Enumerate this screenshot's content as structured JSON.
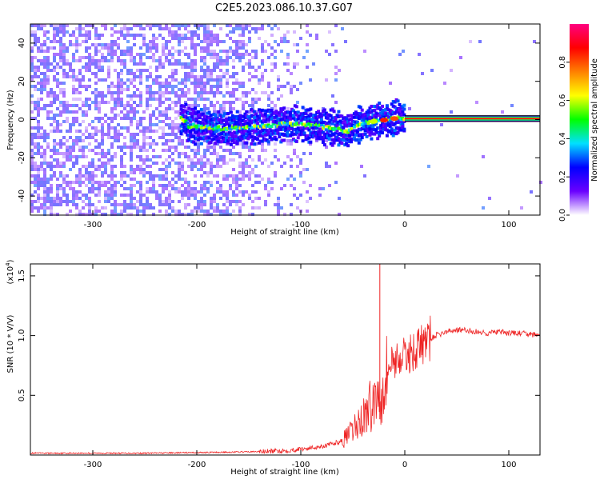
{
  "title": "C2E5.2023.086.10.37.G07",
  "chart_data": [
    {
      "type": "heatmap",
      "xlabel": "Height of straight line (km)",
      "ylabel": "Frequency (Hz)",
      "xlim": [
        -360,
        130
      ],
      "ylim": [
        -50,
        50
      ],
      "xticks": [
        -300,
        -200,
        -100,
        0,
        100
      ],
      "yticks": [
        -40,
        -20,
        0,
        20,
        40
      ],
      "colorbar": {
        "label": "Normalized spectral amplitude",
        "range": [
          0,
          1
        ],
        "ticks": [
          "0.0",
          "0.2",
          "0.4",
          "0.6",
          "0.8"
        ],
        "colors": [
          "#ffffff",
          "#6a00ff",
          "#0000ff",
          "#00e0ff",
          "#00ff00",
          "#ffff00",
          "#ff8000",
          "#ff0000",
          "#ff0080"
        ]
      },
      "ridge": {
        "x": [
          -210,
          -190,
          -170,
          -150,
          -130,
          -110,
          -90,
          -70,
          -55,
          -45,
          -30,
          -15,
          -5,
          0,
          130
        ],
        "y": [
          -3,
          -4,
          -5,
          -4,
          -3,
          -2,
          -3,
          -4,
          -6,
          -3,
          -1,
          0,
          1,
          0.5,
          0.5
        ]
      }
    },
    {
      "type": "line",
      "xlabel": "Height of straight line (km)",
      "ylabel": "SNR (10 * V/V)",
      "yscale_label": "(x10",
      "yscale_exp": "4",
      "xlim": [
        -360,
        130
      ],
      "ylim": [
        0,
        1.6
      ],
      "xticks": [
        -300,
        -200,
        -100,
        0,
        100
      ],
      "yticks": [
        "0.5",
        "1.0",
        "1.5"
      ],
      "color": "#ee2222",
      "series": [
        {
          "x": [
            -360,
            -300,
            -250,
            -200,
            -160,
            -130,
            -110,
            -90,
            -75,
            -60,
            -50,
            -40,
            -30,
            -25,
            -20,
            -15,
            -10,
            0,
            10,
            20,
            30,
            40,
            50,
            60,
            70,
            80,
            90,
            100,
            110,
            120,
            130
          ],
          "y": [
            0.015,
            0.015,
            0.015,
            0.02,
            0.025,
            0.03,
            0.04,
            0.06,
            0.08,
            0.12,
            0.2,
            0.32,
            0.45,
            0.5,
            0.65,
            0.75,
            0.8,
            0.82,
            0.88,
            0.95,
            1.0,
            1.03,
            1.05,
            1.04,
            1.03,
            1.02,
            1.03,
            1.02,
            1.02,
            1.01,
            1.0
          ]
        }
      ],
      "spike": {
        "x": -24,
        "y": 1.6
      }
    }
  ]
}
